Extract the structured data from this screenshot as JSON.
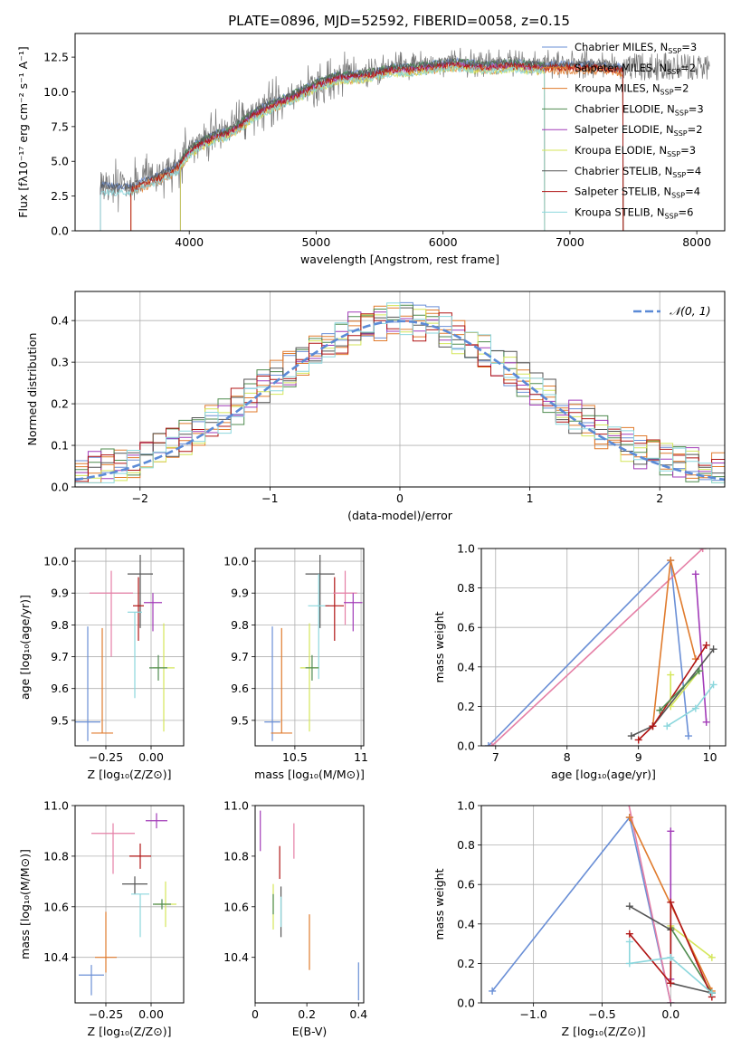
{
  "figure_title": "PLATE=0896, MJD=52592, FIBERID=0058, z=0.15",
  "colors": {
    "models": [
      "#6a8fd6",
      "#e07b2d",
      "#e07b2d",
      "#4f8b4f",
      "#a23bb8",
      "#d4e65a",
      "#555555",
      "#b01515",
      "#8cd7dd"
    ],
    "extra_pink": "#e57fa6",
    "normal": "#5b8ad6",
    "grid": "#b0b0b0"
  },
  "chart_data": [
    {
      "id": "spectrum",
      "type": "line",
      "title": "PLATE=0896, MJD=52592, FIBERID=0058, z=0.15",
      "xlabel": "wavelength [Angstrom, rest frame]",
      "ylabel": "Flux [fλ10⁻¹⁷ erg cm⁻² s⁻¹ A⁻¹]",
      "xlim": [
        3100,
        8220
      ],
      "ylim": [
        0,
        14.2
      ],
      "xticks": [
        4000,
        5000,
        6000,
        7000,
        8000
      ],
      "yticks": [
        0.0,
        2.5,
        5.0,
        7.5,
        10.0,
        12.5
      ],
      "grid": false,
      "legend_position": "right",
      "legend": [
        {
          "label": "Chabrier MILES, N",
          "sub": "SSP",
          "suffix": "=3"
        },
        {
          "label": "Salpeter MILES, N",
          "sub": "SSP",
          "suffix": "=2"
        },
        {
          "label": "Kroupa MILES, N",
          "sub": "SSP",
          "suffix": "=2"
        },
        {
          "label": "Chabrier ELODIE, N",
          "sub": "SSP",
          "suffix": "=3"
        },
        {
          "label": "Salpeter ELODIE, N",
          "sub": "SSP",
          "suffix": "=2"
        },
        {
          "label": "Kroupa ELODIE, N",
          "sub": "SSP",
          "suffix": "=3"
        },
        {
          "label": "Chabrier STELIB, N",
          "sub": "SSP",
          "suffix": "=4"
        },
        {
          "label": "Salpeter STELIB, N",
          "sub": "SSP",
          "suffix": "=4"
        },
        {
          "label": "Kroupa STELIB, N",
          "sub": "SSP",
          "suffix": "=6"
        }
      ],
      "continuum": {
        "x": [
          3300,
          3450,
          3550,
          3700,
          3800,
          3900,
          4000,
          4100,
          4200,
          4300,
          4400,
          4500,
          4600,
          4700,
          4800,
          4900,
          5000,
          5100,
          5200,
          5300,
          5400,
          5500,
          5600,
          5700,
          5800,
          5900,
          6000,
          6100,
          6200,
          6300,
          6400,
          6500,
          6600,
          6700,
          6800,
          6900,
          7000,
          7100,
          7200,
          7300,
          7400
        ],
        "y": [
          3.3,
          3.2,
          3.3,
          3.8,
          4.2,
          4.7,
          5.9,
          6.5,
          7.0,
          7.2,
          7.8,
          8.5,
          9.0,
          9.4,
          9.8,
          10.2,
          10.7,
          11.0,
          11.3,
          11.3,
          11.4,
          11.6,
          11.8,
          11.8,
          11.9,
          12.0,
          12.1,
          12.2,
          12.1,
          12.0,
          12.0,
          12.1,
          12.1,
          12.0,
          12.0,
          12.0,
          12.0,
          12.0,
          12.0,
          11.9,
          11.8
        ]
      },
      "model_ranges": [
        [
          3300,
          7420
        ],
        [
          3540,
          7420
        ],
        [
          3540,
          7420
        ],
        [
          3930,
          6800
        ],
        [
          3930,
          6800
        ],
        [
          3930,
          6800
        ],
        [
          3300,
          7420
        ],
        [
          3540,
          7420
        ],
        [
          3300,
          6800
        ]
      ]
    },
    {
      "id": "residuals",
      "type": "line",
      "xlabel": "(data-model)/error",
      "ylabel": "Normed distribution",
      "xlim": [
        -2.5,
        2.5
      ],
      "ylim": [
        0,
        0.47
      ],
      "xticks": [
        -2,
        -1,
        0,
        1,
        2
      ],
      "yticks": [
        0.0,
        0.1,
        0.2,
        0.3,
        0.4
      ],
      "grid": true,
      "legend_position": "top-right",
      "legend": [
        {
          "label": "𝒩(0, 1)"
        }
      ]
    },
    {
      "id": "age_vs_Z",
      "type": "scatter",
      "xlabel": "Z [log₁₀(Z/Z⊙)]",
      "ylabel": "age  [log₁₀(age/yr)]",
      "xlim": [
        -0.42,
        0.18
      ],
      "ylim": [
        9.42,
        10.04
      ],
      "xticks": [
        -0.25,
        0.0
      ],
      "xticklabels": [
        "−0.25",
        "0.00"
      ],
      "yticks": [
        9.5,
        9.6,
        9.7,
        9.8,
        9.9,
        10.0
      ],
      "grid": true,
      "points": [
        {
          "x": -0.35,
          "y": 9.495,
          "xerr": 0.07,
          "yerr": [
            0.06,
            0.3
          ],
          "color": 0
        },
        {
          "x": -0.27,
          "y": 9.46,
          "xerr": 0.06,
          "yerr": [
            0.0,
            0.33
          ],
          "color": 1
        },
        {
          "x": -0.22,
          "y": 9.9,
          "xerr": 0.12,
          "yerr": [
            0.2,
            0.07
          ],
          "color": 9
        },
        {
          "x": -0.06,
          "y": 9.96,
          "xerr": 0.07,
          "yerr": [
            0.17,
            0.06
          ],
          "color": 6
        },
        {
          "x": -0.07,
          "y": 9.86,
          "xerr": 0.03,
          "yerr": [
            0.11,
            0.09
          ],
          "color": 7
        },
        {
          "x": -0.09,
          "y": 9.84,
          "xerr": 0.04,
          "yerr": [
            0.27,
            0.0
          ],
          "color": 8
        },
        {
          "x": 0.01,
          "y": 9.87,
          "xerr": 0.05,
          "yerr": [
            0.09,
            0.03
          ],
          "color": 4
        },
        {
          "x": 0.07,
          "y": 9.665,
          "xerr": 0.06,
          "yerr": [
            0.2,
            0.14
          ],
          "color": 5
        },
        {
          "x": 0.04,
          "y": 9.665,
          "xerr": 0.05,
          "yerr": [
            0.04,
            0.04
          ],
          "color": 3
        }
      ]
    },
    {
      "id": "age_vs_mass",
      "type": "scatter",
      "xlabel": "mass [log₁₀(M/M⊙)]",
      "ylabel": "",
      "xlim": [
        10.2,
        11.02
      ],
      "ylim": [
        9.42,
        10.04
      ],
      "xticks": [
        10.5,
        11.0
      ],
      "yticks": [
        9.5,
        9.6,
        9.7,
        9.8,
        9.9,
        10.0
      ],
      "grid": true,
      "points": [
        {
          "x": 10.33,
          "y": 9.495,
          "xerr": 0.06,
          "yerr": [
            0.06,
            0.3
          ],
          "color": 0
        },
        {
          "x": 10.4,
          "y": 9.46,
          "xerr": 0.08,
          "yerr": [
            0.0,
            0.33
          ],
          "color": 1
        },
        {
          "x": 10.69,
          "y": 9.96,
          "xerr": 0.11,
          "yerr": [
            0.17,
            0.06
          ],
          "color": 6
        },
        {
          "x": 10.68,
          "y": 9.86,
          "xerr": 0.08,
          "yerr": [
            0.23,
            0.1
          ],
          "color": 8
        },
        {
          "x": 10.8,
          "y": 9.86,
          "xerr": 0.07,
          "yerr": [
            0.11,
            0.09
          ],
          "color": 7
        },
        {
          "x": 10.88,
          "y": 9.9,
          "xerr": 0.09,
          "yerr": [
            0.1,
            0.07
          ],
          "color": 9
        },
        {
          "x": 10.94,
          "y": 9.87,
          "xerr": 0.07,
          "yerr": [
            0.09,
            0.03
          ],
          "color": 4
        },
        {
          "x": 10.61,
          "y": 9.665,
          "xerr": 0.07,
          "yerr": [
            0.2,
            0.14
          ],
          "color": 5
        },
        {
          "x": 10.63,
          "y": 9.665,
          "xerr": 0.05,
          "yerr": [
            0.04,
            0.04
          ],
          "color": 3
        }
      ]
    },
    {
      "id": "weight_vs_age",
      "type": "line",
      "xlabel": "age  [log₁₀(age/yr)]",
      "ylabel": "mass weight",
      "xlim": [
        6.8,
        10.22
      ],
      "ylim": [
        0,
        1.0
      ],
      "xticks": [
        7,
        8,
        9,
        10
      ],
      "yticks": [
        0.0,
        0.2,
        0.4,
        0.6,
        0.8,
        1.0
      ],
      "grid": true,
      "series": [
        {
          "color": 0,
          "x": [
            6.9,
            9.45,
            9.7
          ],
          "y": [
            0.0,
            0.94,
            0.05
          ]
        },
        {
          "color": 9,
          "x": [
            6.95,
            9.9
          ],
          "y": [
            0.0,
            1.0
          ]
        },
        {
          "color": 1,
          "x": [
            9.2,
            9.45,
            9.8
          ],
          "y": [
            0.1,
            0.94,
            0.44
          ]
        },
        {
          "color": 4,
          "x": [
            9.8,
            9.95
          ],
          "y": [
            0.87,
            0.12
          ]
        },
        {
          "color": 5,
          "x": [
            9.45,
            9.45,
            9.85
          ],
          "y": [
            0.36,
            0.2,
            0.38
          ]
        },
        {
          "color": 6,
          "x": [
            8.9,
            9.2,
            10.05
          ],
          "y": [
            0.05,
            0.1,
            0.49
          ]
        },
        {
          "color": 7,
          "x": [
            9.0,
            9.2,
            9.95
          ],
          "y": [
            0.03,
            0.1,
            0.51
          ]
        },
        {
          "color": 8,
          "x": [
            9.4,
            9.8,
            10.05
          ],
          "y": [
            0.1,
            0.19,
            0.31
          ]
        },
        {
          "color": 3,
          "x": [
            9.3,
            9.85
          ],
          "y": [
            0.18,
            0.38
          ]
        }
      ]
    },
    {
      "id": "mass_vs_Z",
      "type": "scatter",
      "xlabel": "Z [log₁₀(Z/Z⊙)]",
      "ylabel": "mass [log₁₀(M/M⊙)]",
      "xlim": [
        -0.42,
        0.18
      ],
      "ylim": [
        10.22,
        11.0
      ],
      "xticks": [
        -0.25,
        0.0
      ],
      "xticklabels": [
        "−0.25",
        "0.00"
      ],
      "yticks": [
        10.4,
        10.6,
        10.8,
        11.0
      ],
      "grid": true,
      "points": [
        {
          "x": -0.33,
          "y": 10.33,
          "xerr": 0.07,
          "yerr": [
            0.08,
            0.04
          ],
          "color": 0
        },
        {
          "x": -0.25,
          "y": 10.4,
          "xerr": 0.06,
          "yerr": [
            0.06,
            0.18
          ],
          "color": 1
        },
        {
          "x": -0.21,
          "y": 10.89,
          "xerr": 0.12,
          "yerr": [
            0.16,
            0.04
          ],
          "color": 9
        },
        {
          "x": -0.06,
          "y": 10.8,
          "xerr": 0.06,
          "yerr": [
            0.05,
            0.05
          ],
          "color": 7
        },
        {
          "x": -0.09,
          "y": 10.69,
          "xerr": 0.07,
          "yerr": [
            0.04,
            0.03
          ],
          "color": 6
        },
        {
          "x": -0.06,
          "y": 10.65,
          "xerr": 0.05,
          "yerr": [
            0.17,
            0.0
          ],
          "color": 8
        },
        {
          "x": 0.03,
          "y": 10.94,
          "xerr": 0.06,
          "yerr": [
            0.03,
            0.03
          ],
          "color": 4
        },
        {
          "x": 0.08,
          "y": 10.61,
          "xerr": 0.06,
          "yerr": [
            0.09,
            0.09
          ],
          "color": 5
        },
        {
          "x": 0.06,
          "y": 10.61,
          "xerr": 0.05,
          "yerr": [
            0.02,
            0.02
          ],
          "color": 3
        }
      ]
    },
    {
      "id": "mass_vs_EBV",
      "type": "scatter",
      "xlabel": "E(B-V)",
      "ylabel": "",
      "xlim": [
        0.0,
        0.42
      ],
      "ylim": [
        10.22,
        11.0
      ],
      "xticks": [
        0.0,
        0.2,
        0.4
      ],
      "yticks": [
        10.4,
        10.6,
        10.8,
        11.0
      ],
      "grid": false,
      "points": [
        {
          "x": 0.02,
          "y": 10.88,
          "xerr": 0,
          "yerr": [
            0.06,
            0.1
          ],
          "color": 4
        },
        {
          "x": 0.07,
          "y": 10.61,
          "xerr": 0,
          "yerr": [
            0.1,
            0.08
          ],
          "color": 5
        },
        {
          "x": 0.07,
          "y": 10.61,
          "xerr": 0,
          "yerr": [
            0.04,
            0.04
          ],
          "color": 3
        },
        {
          "x": 0.095,
          "y": 10.76,
          "xerr": 0,
          "yerr": [
            0.05,
            0.08
          ],
          "color": 7
        },
        {
          "x": 0.1,
          "y": 10.64,
          "xerr": 0,
          "yerr": [
            0.16,
            0.04
          ],
          "color": 6
        },
        {
          "x": 0.1,
          "y": 10.6,
          "xerr": 0,
          "yerr": [
            0.08,
            0.04
          ],
          "color": 8
        },
        {
          "x": 0.15,
          "y": 10.86,
          "xerr": 0,
          "yerr": [
            0.07,
            0.07
          ],
          "color": 9
        },
        {
          "x": 0.21,
          "y": 10.45,
          "xerr": 0,
          "yerr": [
            0.1,
            0.12
          ],
          "color": 1
        },
        {
          "x": 0.4,
          "y": 10.3,
          "xerr": 0,
          "yerr": [
            0.07,
            0.08
          ],
          "color": 0
        }
      ]
    },
    {
      "id": "weight_vs_Z",
      "type": "line",
      "xlabel": "Z [log₁₀(Z/Z⊙)]",
      "ylabel": "mass weight",
      "xlim": [
        -1.38,
        0.4
      ],
      "ylim": [
        0,
        1.0
      ],
      "xticks": [
        -1.0,
        -0.5,
        0.0
      ],
      "xticklabels": [
        "−1.0",
        "−0.5",
        "0.0"
      ],
      "yticks": [
        0.0,
        0.2,
        0.4,
        0.6,
        0.8,
        1.0
      ],
      "grid": true,
      "series": [
        {
          "color": 0,
          "x": [
            -1.3,
            -0.3,
            0.0
          ],
          "y": [
            0.06,
            0.94,
            0.0
          ]
        },
        {
          "color": 9,
          "x": [
            -0.31,
            0.0
          ],
          "y": [
            1.02,
            0.0
          ]
        },
        {
          "color": 1,
          "x": [
            -0.3,
            0.3
          ],
          "y": [
            0.94,
            0.06
          ]
        },
        {
          "color": 4,
          "x": [
            0.0,
            0.0
          ],
          "y": [
            0.87,
            0.12
          ]
        },
        {
          "color": 5,
          "x": [
            0.0,
            0.3
          ],
          "y": [
            0.39,
            0.23
          ]
        },
        {
          "color": 3,
          "x": [
            0.0,
            0.3
          ],
          "y": [
            0.38,
            0.05
          ]
        },
        {
          "color": 6,
          "x": [
            -0.3,
            0.0,
            0.0,
            0.3
          ],
          "y": [
            0.49,
            0.37,
            0.1,
            0.05
          ]
        },
        {
          "color": 7,
          "x": [
            -0.3,
            0.0,
            0.0,
            0.3
          ],
          "y": [
            0.35,
            0.1,
            0.51,
            0.03
          ]
        },
        {
          "color": 8,
          "x": [
            -0.3,
            -0.3,
            0.0,
            0.3
          ],
          "y": [
            0.31,
            0.2,
            0.23,
            0.05
          ]
        }
      ]
    }
  ]
}
